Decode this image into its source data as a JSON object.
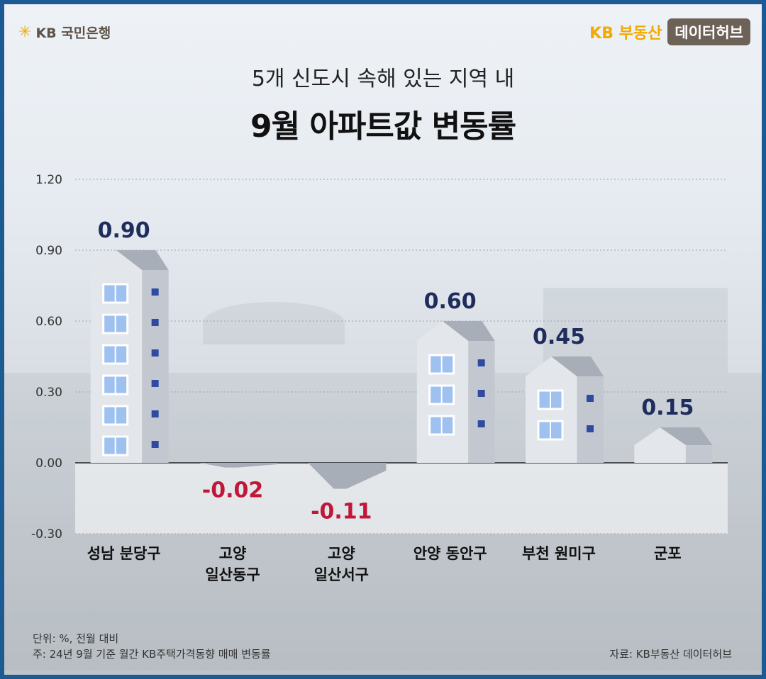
{
  "header": {
    "bank_logo_text": "KB 국민은행",
    "brand_prefix": "KB",
    "brand_name": "부동산",
    "brand_badge": "데이터허브"
  },
  "title": {
    "subtitle": "5개 신도시 속해 있는 지역 내",
    "main": "9월 아파트값 변동률"
  },
  "chart_data": {
    "type": "bar",
    "categories": [
      [
        "성남 분당구"
      ],
      [
        "고양",
        "일산동구"
      ],
      [
        "고양",
        "일산서구"
      ],
      [
        "안양 동안구"
      ],
      [
        "부천 원미구"
      ],
      [
        "군포"
      ]
    ],
    "values": [
      0.9,
      -0.02,
      -0.11,
      0.6,
      0.45,
      0.15
    ],
    "value_labels": [
      "0.90",
      "-0.02",
      "-0.11",
      "0.60",
      "0.45",
      "0.15"
    ],
    "y_ticks": [
      "1.20",
      "0.90",
      "0.60",
      "0.30",
      "0.00",
      "-0.30"
    ],
    "y_tick_values": [
      1.2,
      0.9,
      0.6,
      0.3,
      0.0,
      -0.3
    ],
    "ylim": [
      -0.3,
      1.2
    ],
    "grid": true,
    "positive_label_color": "#1f2d5c",
    "negative_label_color": "#c0163a",
    "building_color": "#d4d8df",
    "window_color": "#9ec1f0",
    "accent_window_color": "#2f4aa0"
  },
  "footer": {
    "unit": "단위: %, 전월 대비",
    "note": "주: 24년 9월 기준 월간 KB주택가격동향 매매 변동률",
    "source": "자료: KB부동산 데이터허브"
  },
  "colors": {
    "frame": "#1d5a93",
    "brand_yellow": "#f2a900",
    "badge": "#6d6258"
  }
}
